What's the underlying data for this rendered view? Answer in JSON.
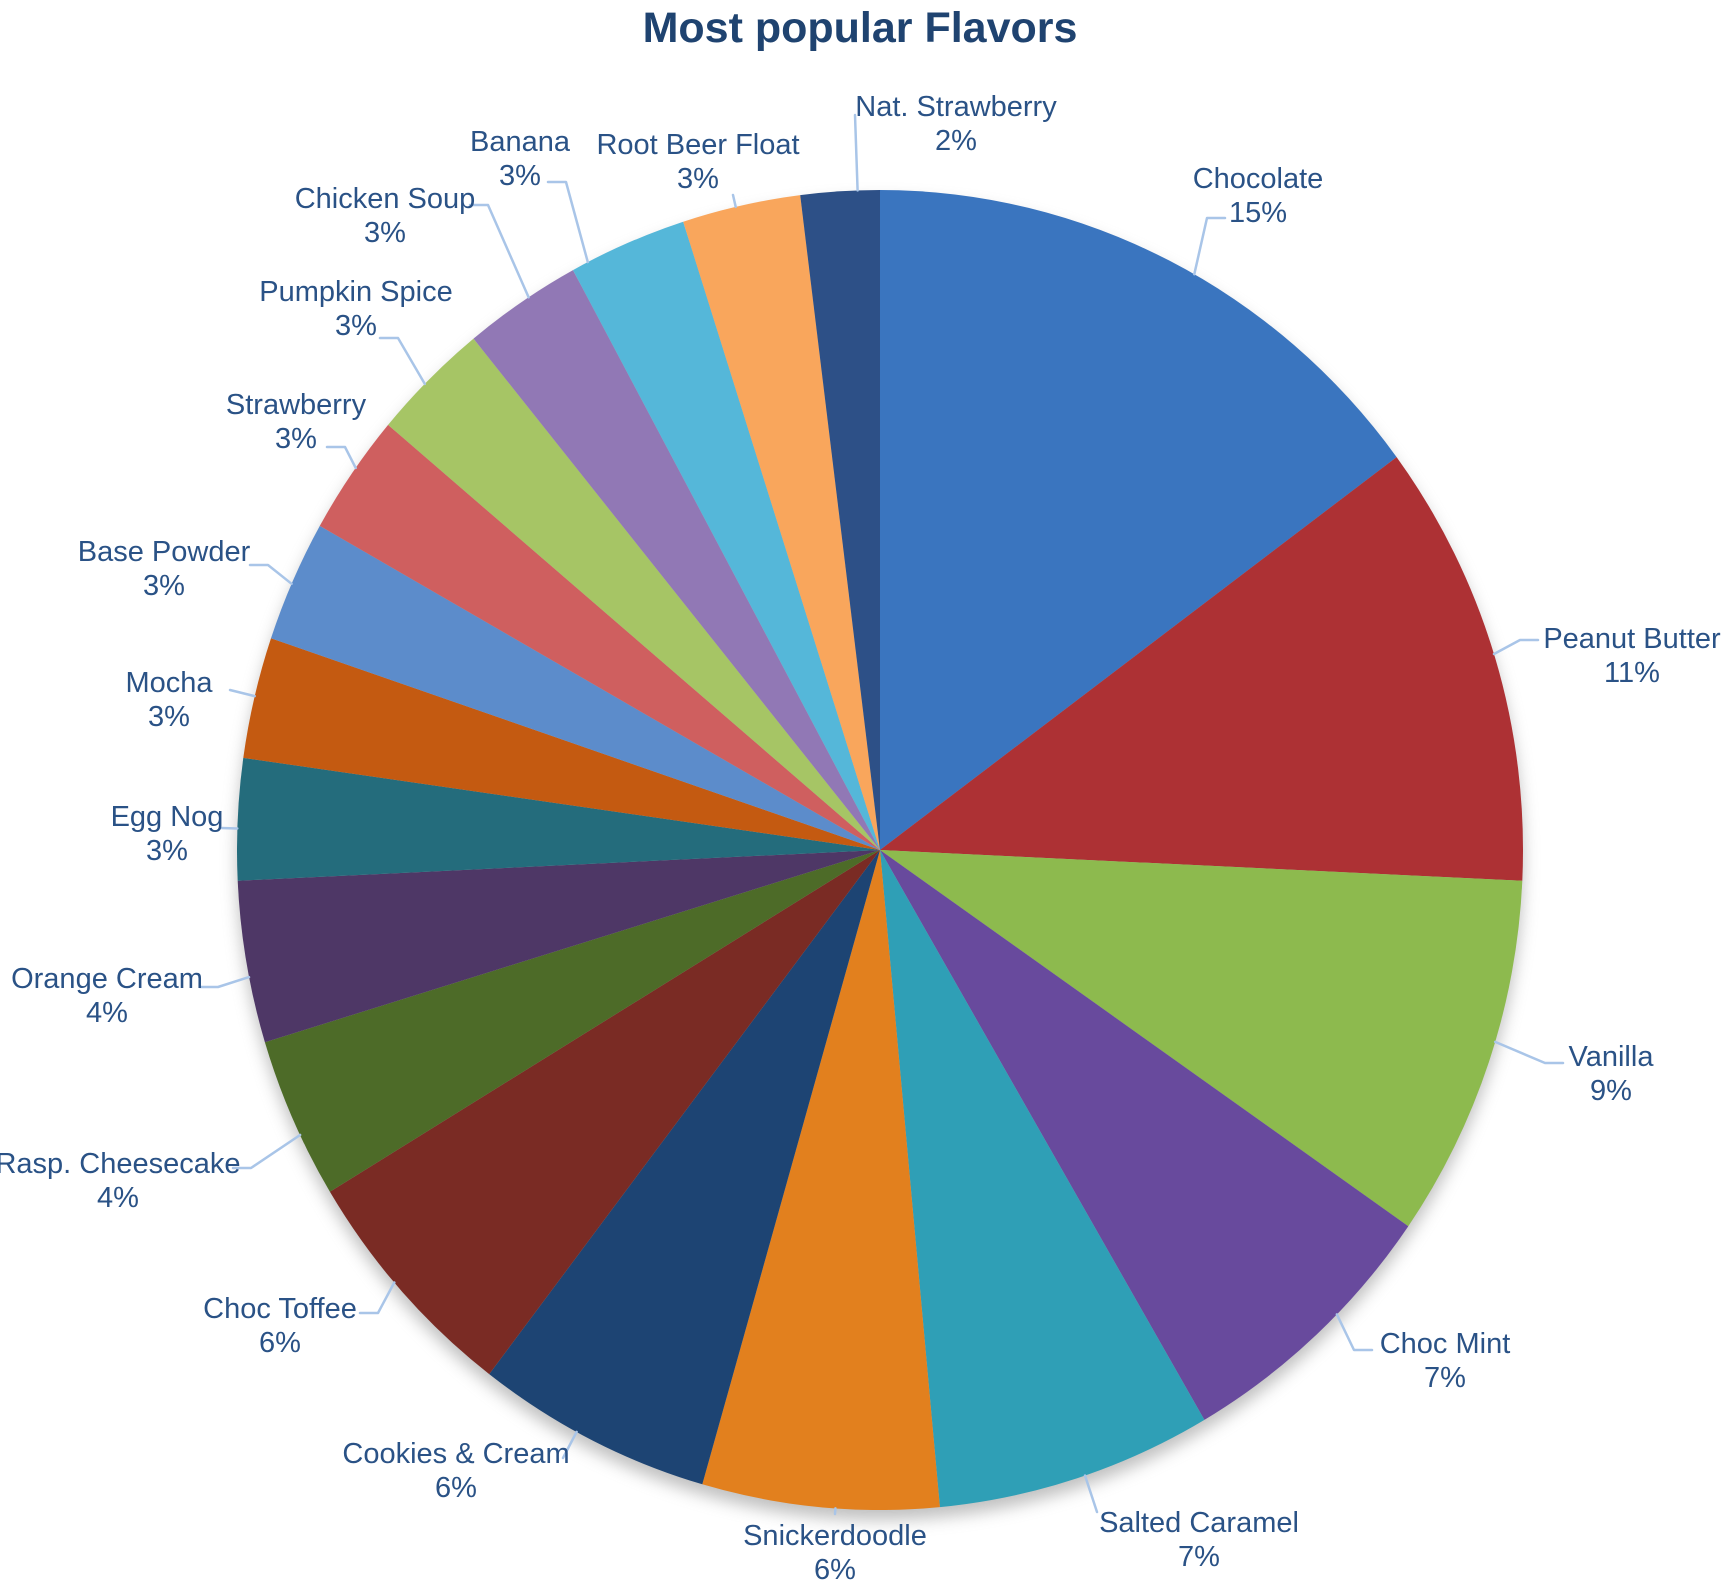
{
  "title": "Most popular Flavors",
  "styles": {
    "background": "#FFFFFF",
    "title_color": "#1F4370",
    "label_color": "#2A5286",
    "leader_color": "#A9C5E8"
  },
  "chart_data": {
    "type": "pie",
    "title": "Most popular Flavors",
    "legend": "none",
    "direction": "clockwise",
    "start_angle_deg": 0,
    "label_format": "category name + percentage, outside with leader lines",
    "slices": [
      {
        "label": "Chocolate",
        "value": 15,
        "pct_label": "15%",
        "color": "#3A75BF"
      },
      {
        "label": "Peanut Butter",
        "value": 11,
        "pct_label": "11%",
        "color": "#AD3134"
      },
      {
        "label": "Vanilla",
        "value": 9,
        "pct_label": "9%",
        "color": "#8DBA4E"
      },
      {
        "label": "Choc Mint",
        "value": 7,
        "pct_label": "7%",
        "color": "#684A9D"
      },
      {
        "label": "Salted Caramel",
        "value": 7,
        "pct_label": "7%",
        "color": "#2F9FB6"
      },
      {
        "label": "Snickerdoodle",
        "value": 6,
        "pct_label": "6%",
        "color": "#E2801E"
      },
      {
        "label": "Cookies & Cream",
        "value": 6,
        "pct_label": "6%",
        "color": "#1D4473"
      },
      {
        "label": "Choc Toffee",
        "value": 6,
        "pct_label": "6%",
        "color": "#7A2B24"
      },
      {
        "label": "Rasp. Cheesecake",
        "value": 4,
        "pct_label": "4%",
        "color": "#4D6B28"
      },
      {
        "label": "Orange Cream",
        "value": 4,
        "pct_label": "4%",
        "color": "#4E3766"
      },
      {
        "label": "Egg Nog",
        "value": 3,
        "pct_label": "3%",
        "color": "#246C7C"
      },
      {
        "label": "Mocha",
        "value": 3,
        "pct_label": "3%",
        "color": "#C45A11"
      },
      {
        "label": "Base Powder",
        "value": 3,
        "pct_label": "3%",
        "color": "#5C8CCB"
      },
      {
        "label": "Strawberry",
        "value": 3,
        "pct_label": "3%",
        "color": "#CF5F5F"
      },
      {
        "label": "Pumpkin Spice",
        "value": 3,
        "pct_label": "3%",
        "color": "#A6C565"
      },
      {
        "label": "Chicken Soup",
        "value": 3,
        "pct_label": "3%",
        "color": "#9178B5"
      },
      {
        "label": "Banana",
        "value": 3,
        "pct_label": "3%",
        "color": "#55B7D9"
      },
      {
        "label": "Root Beer Float",
        "value": 3,
        "pct_label": "3%",
        "color": "#F9A65C"
      },
      {
        "label": "Nat. Strawberry",
        "value": 2,
        "pct_label": "2%",
        "color": "#2D5087"
      }
    ]
  }
}
